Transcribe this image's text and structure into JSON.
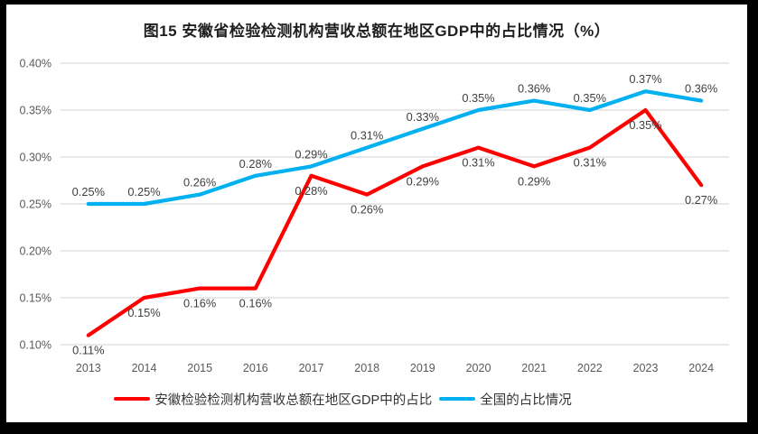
{
  "window": {
    "frame_color": "#000000",
    "canvas_color": "#ffffff"
  },
  "chart_data": {
    "type": "line",
    "title": "图15 安徽省检验检测机构营收总额在地区GDP中的占比情况（%）",
    "categories": [
      "2013",
      "2014",
      "2015",
      "2016",
      "2017",
      "2018",
      "2019",
      "2020",
      "2021",
      "2022",
      "2023",
      "2024"
    ],
    "series": [
      {
        "name": "安徽检验检测机构营收总额在地区GDP中的占比",
        "color": "#FF0000",
        "values": [
          0.11,
          0.15,
          0.16,
          0.16,
          0.28,
          0.26,
          0.29,
          0.31,
          0.29,
          0.31,
          0.35,
          0.27
        ],
        "point_labels": [
          "0.11%",
          "0.15%",
          "0.16%",
          "0.16%",
          "0.28%",
          "0.26%",
          "0.29%",
          "0.31%",
          "0.29%",
          "0.31%",
          "0.35%",
          "0.27%"
        ],
        "label_position": "below"
      },
      {
        "name": "全国的占比情况",
        "color": "#00B0F0",
        "values": [
          0.25,
          0.25,
          0.26,
          0.28,
          0.29,
          0.31,
          0.33,
          0.35,
          0.36,
          0.35,
          0.37,
          0.36
        ],
        "point_labels": [
          "0.25%",
          "0.25%",
          "0.26%",
          "0.28%",
          "0.29%",
          "0.31%",
          "0.33%",
          "0.35%",
          "0.36%",
          "0.35%",
          "0.37%",
          "0.36%"
        ],
        "label_position": "above"
      }
    ],
    "y_axis": {
      "tick_labels": [
        "0.40%",
        "0.35%",
        "0.30%",
        "0.25%",
        "0.20%",
        "0.15%",
        "0.10%"
      ],
      "min": 0.1,
      "max": 0.4
    },
    "x_axis": {
      "tick_labels": [
        "2013",
        "2014",
        "2015",
        "2016",
        "2017",
        "2018",
        "2019",
        "2020",
        "2021",
        "2022",
        "2023",
        "2024"
      ]
    },
    "grid": true,
    "legend_position": "bottom",
    "style_colors": {
      "gridline": "#D9D9D9",
      "axis_text": "#595959",
      "data_label_text": "#3F3F3F",
      "title_text": "#1F1F1F"
    }
  }
}
